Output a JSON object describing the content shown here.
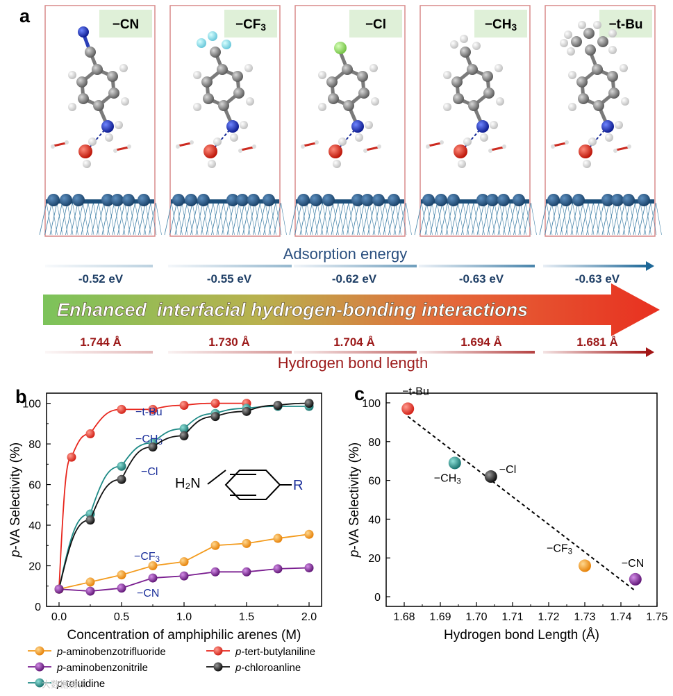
{
  "panel_a": {
    "label": "a",
    "substituents": [
      "−CN",
      "−CF3",
      "−Cl",
      "−CH3",
      "−t-Bu"
    ],
    "adsorption_title": "Adsorption energy",
    "adsorption_energies": [
      "-0.52 eV",
      "-0.55 eV",
      "-0.62 eV",
      "-0.63 eV",
      "-0.63 eV"
    ],
    "banner_text": "Enhanced  interfacial hydrogen-bonding interactions",
    "bond_lengths": [
      "1.744 Å",
      "1.730 Å",
      "1.704 Å",
      "1.694 Å",
      "1.681 Å"
    ],
    "bond_title": "Hydrogen bond length"
  },
  "panel_b": {
    "label": "b",
    "molecule_left": "H₂N",
    "molecule_right": "R",
    "legend": [
      "p-aminobenzotrifluoride",
      "p-tert-butylaniline",
      "p-aminobenzonitrile",
      "p-chloroanline",
      "p-toluidine"
    ],
    "legend_prefix": "p",
    "legend_names": [
      "-aminobenzotrifluoride",
      "-tert-butylaniline",
      "-aminobenzonitrile",
      "-chloroanline",
      "-toluidine"
    ]
  },
  "panel_c": {
    "label": "c"
  },
  "colors": {
    "red": "#e8251c",
    "black": "#111111",
    "teal": "#1e8a86",
    "orange": "#f39a1b",
    "purple": "#7a1e90",
    "blue_text": "#1a2e9a",
    "energy_text": "#1f3f66",
    "bond_text": "#9c1a1a"
  },
  "watermark": "大数据资讯",
  "chart_data": [
    {
      "type": "line",
      "xlabel": "Concentration of amphiphilic arenes (M)",
      "ylabel": "p-VA Selectivity (%)",
      "xlim": [
        -0.1,
        2.1
      ],
      "ylim": [
        0,
        105
      ],
      "xticks": [
        "0.0",
        "0.5",
        "1.0",
        "1.5",
        "2.0"
      ],
      "yticks": [
        "0",
        "20",
        "40",
        "60",
        "80",
        "100"
      ],
      "series": [
        {
          "name": "p-tert-butylaniline",
          "label": "−t-Bu",
          "color": "#e8251c",
          "x": [
            0,
            0.1,
            0.25,
            0.5,
            0.75,
            1.0,
            1.25,
            1.5
          ],
          "y": [
            8.5,
            73.5,
            85,
            97,
            97,
            99,
            100,
            100
          ]
        },
        {
          "name": "p-toluidine",
          "label": "−CH3",
          "color": "#1e8a86",
          "x": [
            0,
            0.25,
            0.5,
            0.75,
            1.0,
            1.25,
            1.5,
            1.75,
            2.0
          ],
          "y": [
            8.5,
            45.5,
            69,
            80.5,
            87.5,
            95,
            97.5,
            98.5,
            98.5
          ]
        },
        {
          "name": "p-chloroanline",
          "label": "−Cl",
          "color": "#111111",
          "x": [
            0,
            0.25,
            0.5,
            0.75,
            1.0,
            1.25,
            1.5,
            1.75,
            2.0
          ],
          "y": [
            8.5,
            42.5,
            62.5,
            78.5,
            84,
            93.5,
            96,
            99,
            100
          ]
        },
        {
          "name": "p-aminobenzotrifluoride",
          "label": "−CF3",
          "color": "#f39a1b",
          "x": [
            0,
            0.25,
            0.5,
            0.75,
            1.0,
            1.25,
            1.5,
            1.75,
            2.0
          ],
          "y": [
            8.5,
            12,
            15.5,
            20,
            22,
            30,
            31,
            33.5,
            35.5
          ]
        },
        {
          "name": "p-aminobenzonitrile",
          "label": "−CN",
          "color": "#7a1e90",
          "x": [
            0,
            0.25,
            0.5,
            0.75,
            1.0,
            1.25,
            1.5,
            1.75,
            2.0
          ],
          "y": [
            8.5,
            7.5,
            9,
            14,
            15,
            17,
            17,
            18.5,
            19
          ]
        }
      ]
    },
    {
      "type": "scatter",
      "xlabel": "Hydrogen bond Length (Å)",
      "ylabel": "p-VA Selectivity (%)",
      "xlim": [
        1.675,
        1.75
      ],
      "ylim": [
        -5,
        105
      ],
      "xticks": [
        "1.68",
        "1.69",
        "1.70",
        "1.71",
        "1.72",
        "1.73",
        "1.74",
        "1.75"
      ],
      "yticks": [
        "0",
        "20",
        "40",
        "60",
        "80",
        "100"
      ],
      "points": [
        {
          "label": "−t-Bu",
          "x": 1.681,
          "y": 97,
          "color": "#e8251c"
        },
        {
          "label": "−CH3",
          "x": 1.694,
          "y": 69,
          "color": "#1e8a86"
        },
        {
          "label": "−Cl",
          "x": 1.704,
          "y": 62,
          "color": "#111111"
        },
        {
          "label": "−CF3",
          "x": 1.73,
          "y": 16,
          "color": "#f39a1b"
        },
        {
          "label": "−CN",
          "x": 1.744,
          "y": 9,
          "color": "#7a1e90"
        }
      ],
      "fit": {
        "x": [
          1.681,
          1.744
        ],
        "y": [
          93,
          3
        ]
      }
    }
  ]
}
